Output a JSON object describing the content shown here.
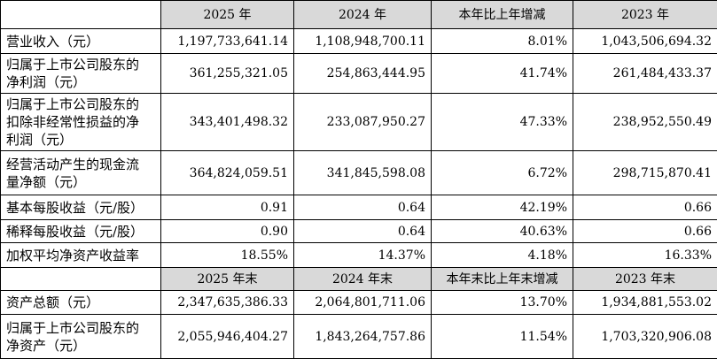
{
  "sections": [
    {
      "header": [
        "2025 年",
        "2024 年",
        "本年比上年增减",
        "2023 年"
      ],
      "rows": [
        [
          "营业收入（元）",
          "1,197,733,641.14",
          "1,108,948,700.11",
          "8.01%",
          "1,043,506,694.32"
        ],
        [
          "归属于上市公司股东的净利润（元）",
          "361,255,321.05",
          "254,863,444.95",
          "41.74%",
          "261,484,433.37"
        ],
        [
          "归属于上市公司股东的扣除非经常性损益的净利润（元）",
          "343,401,498.32",
          "233,087,950.27",
          "47.33%",
          "238,952,550.49"
        ],
        [
          "经营活动产生的现金流量净额（元）",
          "364,824,059.51",
          "341,845,598.08",
          "6.72%",
          "298,715,870.41"
        ],
        [
          "基本每股收益（元/股）",
          "0.91",
          "0.64",
          "42.19%",
          "0.66"
        ],
        [
          "稀释每股收益（元/股）",
          "0.90",
          "0.64",
          "40.63%",
          "0.66"
        ],
        [
          "加权平均净资产收益率",
          "18.55%",
          "14.37%",
          "4.18%",
          "16.33%"
        ]
      ]
    },
    {
      "header": [
        "2025 年末",
        "2024 年末",
        "本年末比上年末增减",
        "2023 年末"
      ],
      "rows": [
        [
          "资产总额（元）",
          "2,347,635,386.33",
          "2,064,801,711.06",
          "13.70%",
          "1,934,881,553.02"
        ],
        [
          "归属于上市公司股东的净资产（元）",
          "2,055,946,404.27",
          "1,843,264,757.86",
          "11.54%",
          "1,703,320,906.08"
        ]
      ]
    }
  ]
}
